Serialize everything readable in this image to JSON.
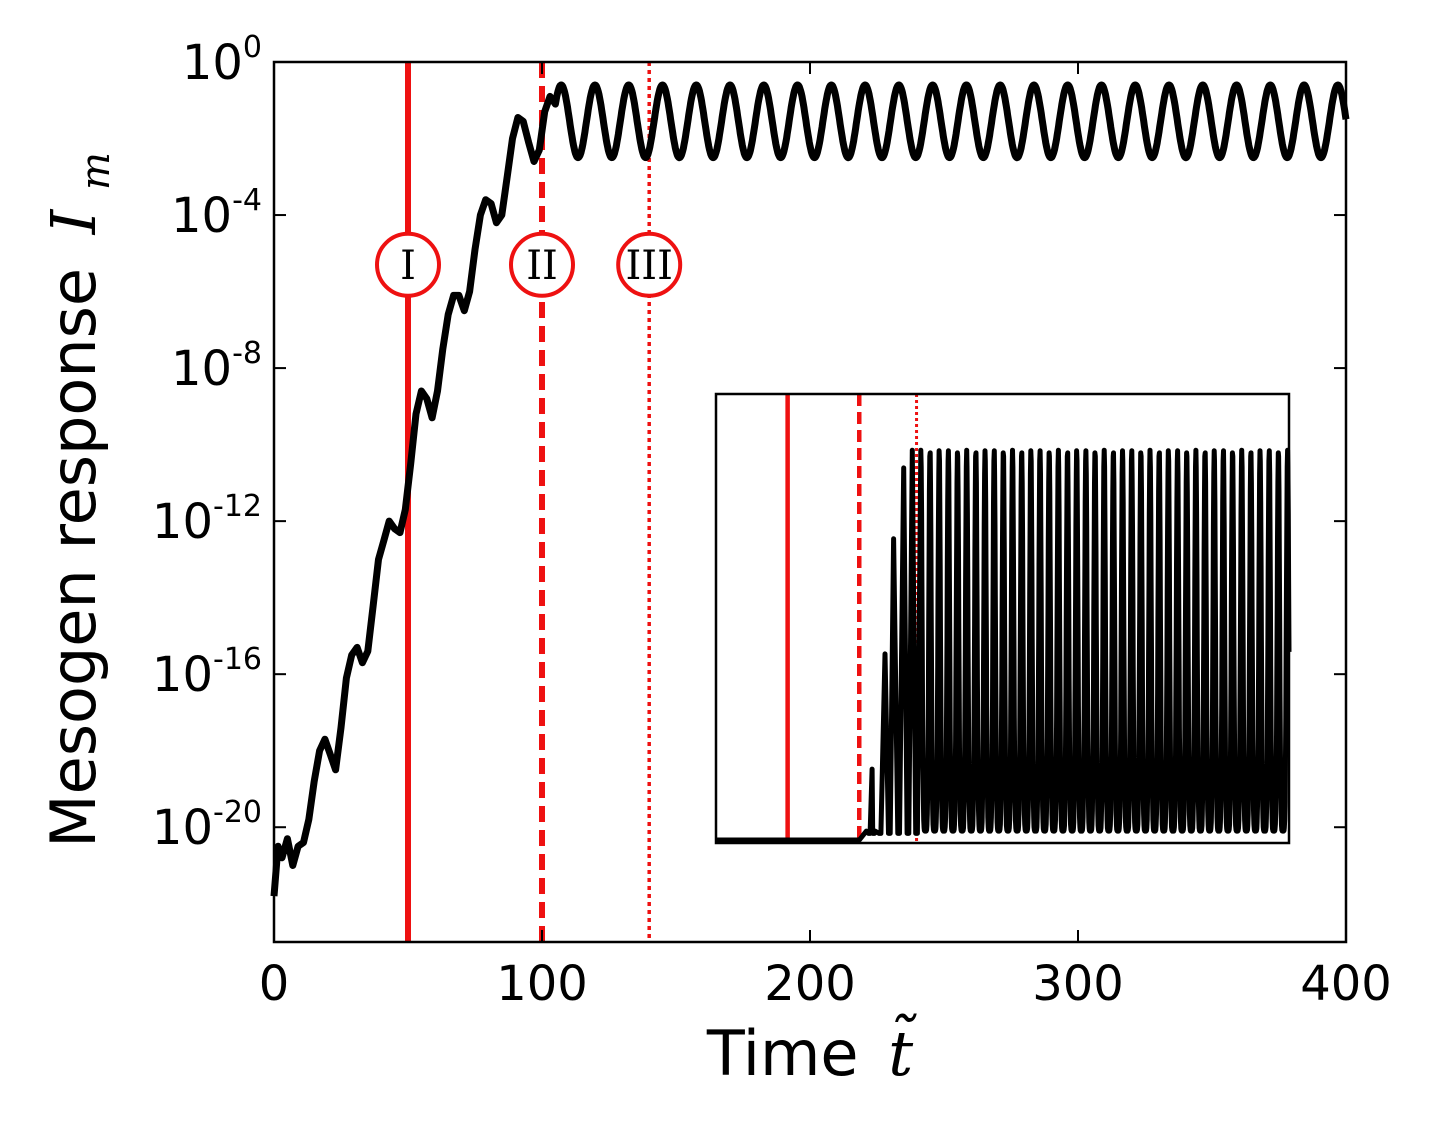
{
  "chart_data": {
    "type": "line",
    "xlabel": "Time",
    "xlabel_symbol": "t̃",
    "ylabel": "Mesogen response",
    "ylabel_symbol": "I",
    "ylabel_subscript": "m",
    "xlim": [
      0,
      400
    ],
    "ylim_log10": [
      -23,
      0
    ],
    "y_scale": "log",
    "grid": false,
    "x_ticks": [
      0,
      100,
      200,
      300,
      400
    ],
    "y_ticks": [
      {
        "base": "10",
        "exp": "0",
        "log": 0
      },
      {
        "base": "10",
        "exp": "-4",
        "log": -4
      },
      {
        "base": "10",
        "exp": "-8",
        "log": -8
      },
      {
        "base": "10",
        "exp": "-12",
        "log": -12
      },
      {
        "base": "10",
        "exp": "-16",
        "log": -16
      },
      {
        "base": "10",
        "exp": "-20",
        "log": -20
      }
    ],
    "series": [
      {
        "color": "#000000",
        "log10_y": [
          [
            0,
            -21.8
          ],
          [
            1.5,
            -20.5
          ],
          [
            3,
            -20.8
          ],
          [
            5,
            -20.3
          ],
          [
            7,
            -21.0
          ],
          [
            9,
            -20.5
          ],
          [
            11,
            -20.4
          ],
          [
            13,
            -19.8
          ],
          [
            15,
            -18.8
          ],
          [
            17,
            -18.0
          ],
          [
            19,
            -17.7
          ],
          [
            21,
            -18.1
          ],
          [
            23,
            -18.5
          ],
          [
            25,
            -17.4
          ],
          [
            27,
            -16.1
          ],
          [
            29,
            -15.5
          ],
          [
            31,
            -15.3
          ],
          [
            33,
            -15.7
          ],
          [
            35,
            -15.4
          ],
          [
            37,
            -14.2
          ],
          [
            39,
            -13.0
          ],
          [
            41,
            -12.5
          ],
          [
            43,
            -12.0
          ],
          [
            45,
            -12.2
          ],
          [
            47,
            -12.3
          ],
          [
            49,
            -11.7
          ],
          [
            51,
            -10.5
          ],
          [
            53,
            -9.2
          ],
          [
            55,
            -8.6
          ],
          [
            57,
            -8.8
          ],
          [
            59,
            -9.3
          ],
          [
            61,
            -8.6
          ],
          [
            63,
            -7.5
          ],
          [
            65,
            -6.6
          ],
          [
            67,
            -6.1
          ],
          [
            69,
            -6.1
          ],
          [
            71,
            -6.5
          ],
          [
            73,
            -6.0
          ],
          [
            75,
            -4.9
          ],
          [
            77,
            -4.0
          ],
          [
            79,
            -3.6
          ],
          [
            81,
            -3.7
          ],
          [
            83,
            -4.2
          ],
          [
            85,
            -4.0
          ],
          [
            87,
            -3.0
          ],
          [
            89,
            -2.0
          ],
          [
            91,
            -1.45
          ],
          [
            93,
            -1.55
          ],
          [
            95,
            -2.1
          ],
          [
            97,
            -2.6
          ],
          [
            99,
            -2.3
          ],
          [
            101,
            -1.3
          ],
          [
            103,
            -0.9
          ],
          [
            105,
            -1.1
          ]
        ],
        "steady_oscillation": {
          "from": 105,
          "to": 400,
          "period": 12.6,
          "log10_max": -0.6,
          "log10_min": -2.5
        }
      }
    ],
    "vlines": [
      {
        "x": 50,
        "style": "solid",
        "color": "#ee1111",
        "label": "I"
      },
      {
        "x": 100,
        "style": "dashed",
        "color": "#ee1111",
        "label": "II"
      },
      {
        "x": 140,
        "style": "dotted",
        "color": "#ee1111",
        "label": "III"
      }
    ],
    "marker_log10_y": -5.3,
    "inset": {
      "type": "line",
      "y_scale": "linear",
      "xlim": [
        0,
        400
      ],
      "ylim": [
        0,
        1
      ],
      "series": [
        {
          "color": "#000000",
          "values": [
            [
              0,
              0
            ],
            [
              100,
              0
            ],
            [
              105,
              0.02
            ],
            [
              109,
              0.16
            ],
            [
              111,
              0.02
            ],
            [
              118,
              0.42
            ],
            [
              124,
              0.68
            ],
            [
              131,
              0.84
            ],
            [
              137,
              0.88
            ],
            [
              143,
              0.88
            ]
          ],
          "steady": {
            "from": 143,
            "to": 400,
            "period": 6.4,
            "max": 0.88,
            "min": 0.02
          }
        }
      ],
      "vlines": [
        {
          "x": 50,
          "style": "solid"
        },
        {
          "x": 100,
          "style": "dashed"
        },
        {
          "x": 140,
          "style": "dotted"
        }
      ]
    }
  }
}
